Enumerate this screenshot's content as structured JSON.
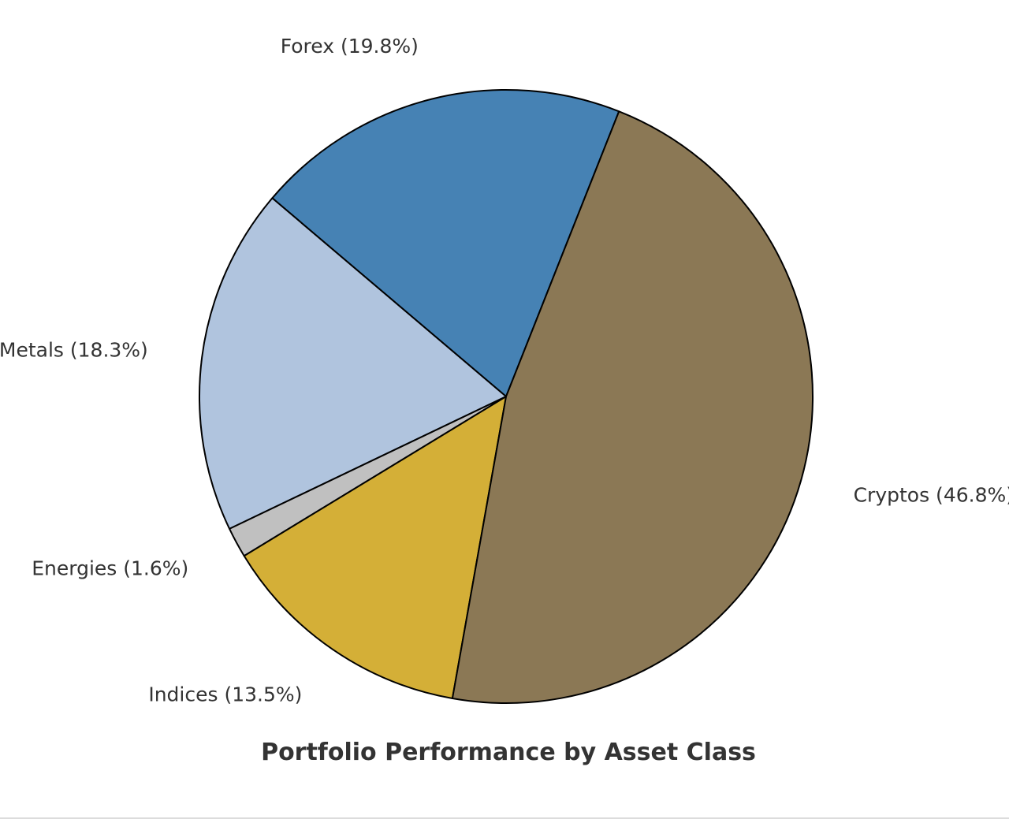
{
  "chart_data": {
    "type": "pie",
    "title": "Portfolio Performance by Asset Class",
    "start_angle_deg": 68.4,
    "direction": "counterclockwise",
    "slices": [
      {
        "name": "Forex",
        "value": 19.8,
        "label": "Forex (19.8%)",
        "color": "#4682b4"
      },
      {
        "name": "Metals",
        "value": 18.3,
        "label": "Metals (18.3%)",
        "color": "#b0c4de"
      },
      {
        "name": "Energies",
        "value": 1.6,
        "label": "Energies (1.6%)",
        "color": "#c0c0c0"
      },
      {
        "name": "Indices",
        "value": 13.5,
        "label": "Indices (13.5%)",
        "color": "#d4af37"
      },
      {
        "name": "Cryptos",
        "value": 46.8,
        "label": "Cryptos (46.8%)",
        "color": "#8b7855"
      }
    ]
  }
}
